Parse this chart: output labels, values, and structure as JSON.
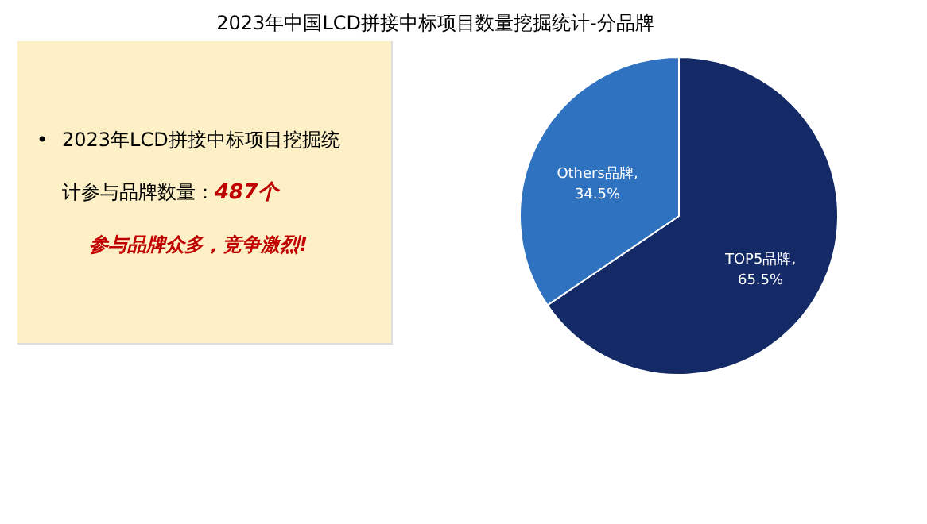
{
  "chart_data": [
    {
      "type": "other",
      "annotations": [
        "•",
        "2023年LCD拼接中标项目挖掘统",
        "计参与品牌数量：",
        "487个",
        "参与品牌众多，竞争激烈!"
      ]
    },
    {
      "type": "pie",
      "title": "2023年中国LCD拼接中标项目数量挖掘统计-分品牌",
      "categories": [
        "TOP5品牌",
        "Others品牌"
      ],
      "values": [
        65.5,
        34.5
      ],
      "colors": [
        "#142a66",
        "#2f73c0"
      ],
      "value_labels": [
        ",65.5%",
        ",34.5%"
      ],
      "legend": false
    }
  ]
}
